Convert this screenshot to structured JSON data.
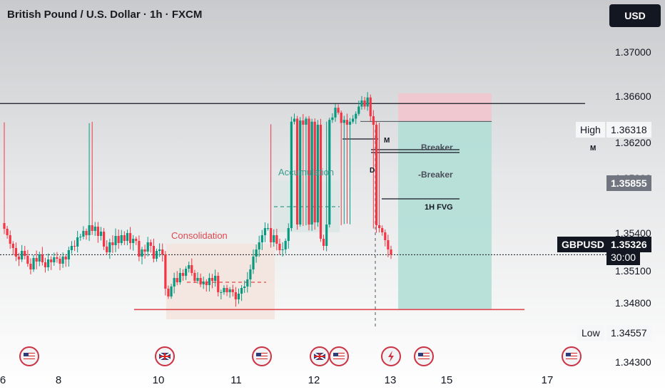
{
  "title": "British Pound / U.S. Dollar · 1h · FXCM",
  "currency_button": "USD",
  "chart_data": {
    "type": "candlestick",
    "symbol": "GBPUSD",
    "interval": "1h",
    "x_ticks": [
      "6",
      "8",
      "10",
      "11",
      "12",
      "13",
      "15",
      "17"
    ],
    "y_ticks": [
      "1.37000",
      "1.36600",
      "1.36200",
      "1.35800",
      "1.35400",
      "1.35100",
      "1.34800",
      "1.34300"
    ],
    "ylim": [
      1.342,
      1.371
    ],
    "high": {
      "label": "High",
      "value": "1.36318"
    },
    "low": {
      "label": "Low",
      "value": "1.34557"
    },
    "current": {
      "symbol": "GBPUSD",
      "value": "1.35326",
      "countdown": "30:00"
    },
    "level_price": "1.35855",
    "annotations": [
      "Consolidation",
      "Accumulation",
      "Breaker",
      "-Breaker",
      "1H FVG",
      "M",
      "D",
      "M"
    ],
    "position": {
      "entry": 1.35855,
      "stop": 1.36318,
      "target": 1.34557
    },
    "key_levels": [
      1.3615,
      1.34557
    ],
    "candles_close": [
      1.3569,
      1.356,
      1.3548,
      1.3542,
      1.353,
      1.3526,
      1.3538,
      1.3531,
      1.352,
      1.3512,
      1.3528,
      1.3523,
      1.3533,
      1.3522,
      1.3515,
      1.3526,
      1.3522,
      1.3529,
      1.3527,
      1.352,
      1.353,
      1.3526,
      1.3539,
      1.3545,
      1.3544,
      1.3557,
      1.3558,
      1.3566,
      1.356,
      1.3574,
      1.3566,
      1.3572,
      1.3559,
      1.3565,
      1.3544,
      1.3536,
      1.355,
      1.3546,
      1.3559,
      1.3549,
      1.356,
      1.3552,
      1.3563,
      1.3549,
      1.3555,
      1.3552,
      1.353,
      1.354,
      1.3537,
      1.355,
      1.3545,
      1.3527,
      1.3538,
      1.354,
      1.3533,
      1.3485,
      1.3474,
      1.3488,
      1.35,
      1.3494,
      1.3507,
      1.3503,
      1.3513,
      1.3518,
      1.3507,
      1.3496,
      1.35,
      1.3491,
      1.3495,
      1.349,
      1.35,
      1.3496,
      1.3503,
      1.348,
      1.348,
      1.3486,
      1.348,
      1.3484,
      1.348,
      1.347,
      1.3478,
      1.3486,
      1.3488,
      1.3498,
      1.3512,
      1.353,
      1.354,
      1.355,
      1.356,
      1.357,
      1.357,
      1.355,
      1.356,
      1.3548,
      1.3539,
      1.354,
      1.3552,
      1.357,
      1.3585,
      1.359,
      1.3575,
      1.3587,
      1.358,
      1.359,
      1.3575,
      1.3585,
      1.3578,
      1.358,
      1.3555,
      1.3545,
      1.3575,
      1.3588,
      1.3592,
      1.3608,
      1.36,
      1.3583,
      1.3588,
      1.358,
      1.3585,
      1.359,
      1.3598,
      1.361,
      1.362,
      1.361,
      1.3625,
      1.3594,
      1.358,
      1.3574,
      1.357,
      1.3564,
      1.3553,
      1.354,
      1.35326
    ]
  }
}
